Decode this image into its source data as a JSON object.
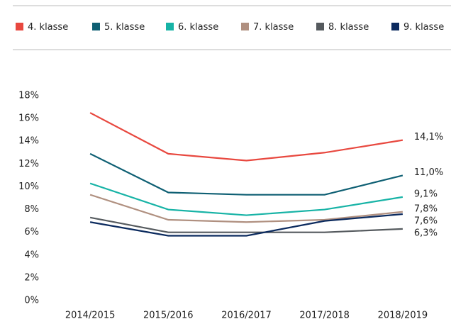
{
  "chart_data": {
    "type": "line",
    "categories": [
      "2014/2015",
      "2015/2016",
      "2016/2017",
      "2017/2018",
      "2018/2019"
    ],
    "series": [
      {
        "name": "4. klasse",
        "color": "#e8483f",
        "values": [
          16.5,
          12.9,
          12.3,
          13.0,
          14.1
        ],
        "value_labels": [
          null,
          null,
          null,
          null,
          "14,1%"
        ]
      },
      {
        "name": "5. klasse",
        "color": "#0e5f73",
        "values": [
          12.9,
          9.5,
          9.3,
          9.3,
          11.0
        ],
        "value_labels": [
          null,
          null,
          null,
          null,
          "11,0%"
        ]
      },
      {
        "name": "6. klasse",
        "color": "#17b3a6",
        "values": [
          10.3,
          8.0,
          7.5,
          8.0,
          9.1
        ],
        "value_labels": [
          null,
          null,
          null,
          null,
          "9,1%"
        ]
      },
      {
        "name": "7. klasse",
        "color": "#b09080",
        "values": [
          9.3,
          7.1,
          6.9,
          7.1,
          7.8
        ],
        "value_labels": [
          null,
          null,
          null,
          null,
          "7,8%"
        ]
      },
      {
        "name": "8. klasse",
        "color": "#555a5e",
        "values": [
          7.3,
          6.0,
          6.0,
          6.0,
          6.3
        ],
        "value_labels": [
          null,
          null,
          null,
          null,
          "6,3%"
        ]
      },
      {
        "name": "9. klasse",
        "color": "#0b2a5e",
        "values": [
          6.9,
          5.7,
          5.7,
          7.0,
          7.6
        ],
        "value_labels": [
          null,
          null,
          null,
          null,
          "7,6%"
        ]
      }
    ],
    "ylim": [
      0,
      18
    ],
    "yticks": [
      {
        "value": 0,
        "label": "0%"
      },
      {
        "value": 2,
        "label": "2%"
      },
      {
        "value": 4,
        "label": "4%"
      },
      {
        "value": 6,
        "label": "6%"
      },
      {
        "value": 8,
        "label": "8%"
      },
      {
        "value": 10,
        "label": "10%"
      },
      {
        "value": 12,
        "label": "12%"
      },
      {
        "value": 14,
        "label": "14%"
      },
      {
        "value": 16,
        "label": "16%"
      },
      {
        "value": 18,
        "label": "18%"
      }
    ],
    "grid": false,
    "legend": "top"
  }
}
